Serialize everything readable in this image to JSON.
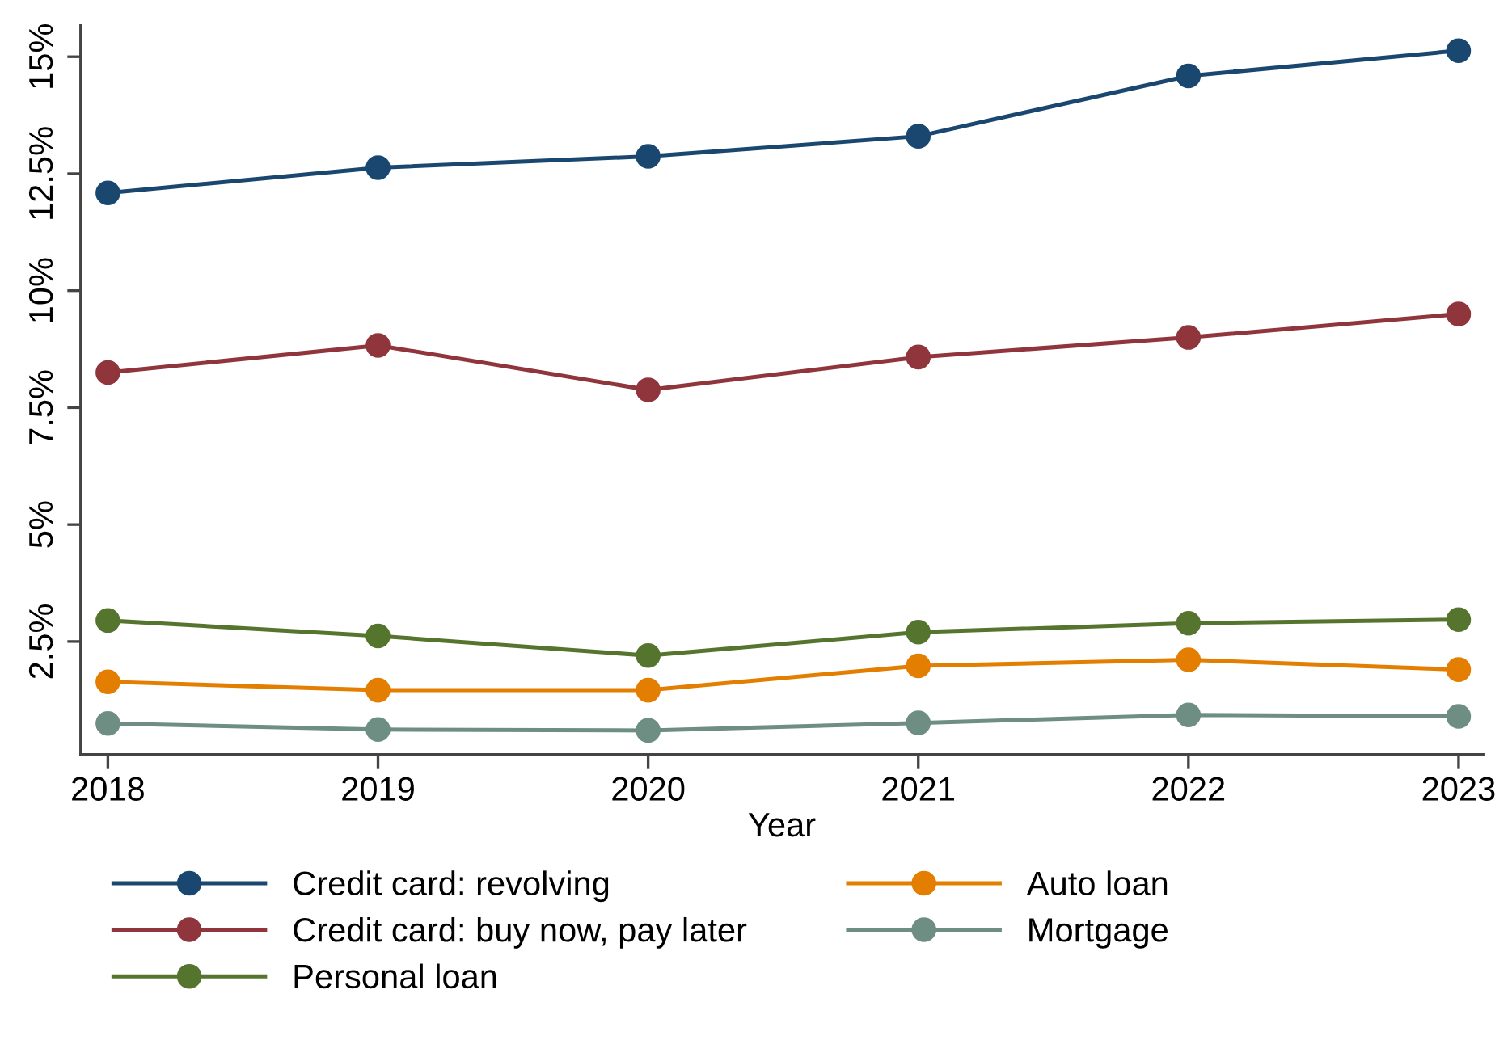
{
  "chart_data": {
    "type": "line",
    "xlabel": "Year",
    "x": [
      2018,
      2019,
      2020,
      2021,
      2022,
      2023
    ],
    "series": [
      {
        "name": "Credit card: revolving",
        "color": "#1a476f",
        "values": [
          12.09,
          12.63,
          12.87,
          13.3,
          14.59,
          15.13
        ]
      },
      {
        "name": "Credit card: buy now, pay later",
        "color": "#90353b",
        "values": [
          8.25,
          8.83,
          7.88,
          8.58,
          9.0,
          9.5
        ]
      },
      {
        "name": "Personal loan",
        "color": "#55752f",
        "values": [
          2.95,
          2.62,
          2.2,
          2.7,
          2.89,
          2.97
        ]
      },
      {
        "name": "Auto loan",
        "color": "#e37e00",
        "values": [
          1.64,
          1.46,
          1.46,
          1.98,
          2.11,
          1.9
        ]
      },
      {
        "name": "Mortgage",
        "color": "#6e8e84",
        "values": [
          0.75,
          0.62,
          0.6,
          0.76,
          0.93,
          0.9
        ]
      }
    ],
    "xlim": [
      2017.9,
      2023.09
    ],
    "xticks": [
      2018,
      2019,
      2020,
      2021,
      2022,
      2023
    ],
    "ylim": [
      0.08,
      15.66
    ],
    "yticks": [
      {
        "value": 2.5,
        "label": "2.5%"
      },
      {
        "value": 5,
        "label": "5%"
      },
      {
        "value": 7.5,
        "label": "7.5%"
      },
      {
        "value": 10,
        "label": "10%"
      },
      {
        "value": 12.5,
        "label": "12.5%"
      },
      {
        "value": 15,
        "label": "15%"
      }
    ],
    "marker": "circle",
    "line_style": "solid",
    "grid": false,
    "legend": "bottom"
  }
}
